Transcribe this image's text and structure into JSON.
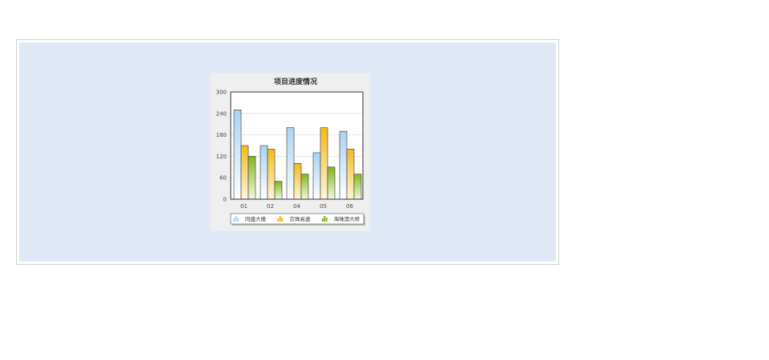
{
  "chart_data": {
    "type": "bar",
    "title": "项目进度情况",
    "categories": [
      "01",
      "02",
      "04",
      "05",
      "06"
    ],
    "series": [
      {
        "name": "同盛大楼",
        "values": [
          250,
          150,
          200,
          130,
          190
        ]
      },
      {
        "name": "京珠高速",
        "values": [
          150,
          140,
          100,
          200,
          140
        ]
      },
      {
        "name": "海珠澳大桥",
        "values": [
          120,
          50,
          70,
          90,
          70
        ]
      }
    ],
    "ylim": [
      0,
      300
    ],
    "yticks": [
      0,
      60,
      120,
      180,
      240,
      300
    ],
    "grid": true,
    "legend_position": "bottom",
    "colors": {
      "series": [
        "#a9d3f2",
        "#f3bb1c",
        "#84b51f"
      ],
      "series_light": [
        "#ffffff",
        "#fff6dc",
        "#f2f9e0"
      ],
      "background": "#efefef",
      "plot_bg": "#ffffff",
      "axis": "#333333",
      "grid": "#d9d9d9"
    }
  }
}
